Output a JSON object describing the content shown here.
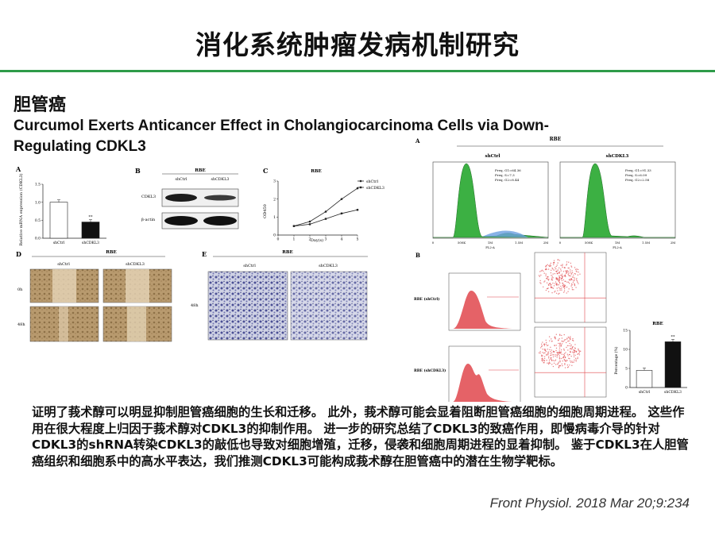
{
  "slide": {
    "title": "消化系统肿瘤发病机制研究",
    "section": "胆管癌",
    "paper_title": "Curcumol Exerts Anticancer Effect in Cholangiocarcinoma Cells via Down-Regulating CDKL3",
    "summary": "证明了莪术醇可以明显抑制胆管癌细胞的生长和迁移。 此外，莪术醇可能会显着阻断胆管癌细胞的细胞周期进程。 这些作用在很大程度上归因于莪术醇对CDKL3的抑制作用。 进一步的研究总结了CDKL3的致癌作用，即慢病毒介导的针对CDKL3的shRNA转染CDKL3的敲低也导致对细胞增殖，迁移，侵袭和细胞周期进程的显着抑制。 鉴于CDKL3在人胆管癌组织和细胞系中的高水平表达，我们推测CDKL3可能构成莪术醇在胆管癌中的潜在生物学靶标。",
    "citation": "Front Physiol. 2018 Mar 20;9:234"
  },
  "colors": {
    "accent": "#2e9b49",
    "histogram_fill": "#3cb043",
    "apoptosis_red": "#e0474c"
  },
  "figure_left": {
    "panel_a": {
      "letter": "A",
      "ylabel": "Relative mRNA expression (CDKL3)",
      "categories": [
        "shCtrl",
        "shCDKL3"
      ],
      "values": [
        1.0,
        0.45
      ],
      "ticks": [
        "0.0",
        "0.5",
        "1.0",
        "1.5"
      ],
      "sig": "**"
    },
    "panel_b": {
      "letter": "B",
      "cell_line": "RBE",
      "lanes": [
        "shCtrl",
        "shCDKL3"
      ],
      "rows": [
        "CDKL3",
        "β-actin"
      ]
    },
    "panel_c": {
      "letter": "C",
      "cell_line": "RBE",
      "xlabel": "Day(s)",
      "ylabel": "OD450",
      "x": [
        0,
        1,
        2,
        3,
        4,
        5
      ],
      "series": [
        {
          "name": "shCtrl",
          "values": [
            0.3,
            0.5,
            0.75,
            1.3,
            2.0,
            2.6
          ]
        },
        {
          "name": "shCDKL3",
          "values": [
            0.3,
            0.5,
            0.6,
            0.9,
            1.2,
            1.4
          ]
        }
      ],
      "xticks": [
        "0",
        "1",
        "2",
        "3",
        "4",
        "5"
      ],
      "yticks": [
        "0",
        "1",
        "2",
        "3"
      ]
    },
    "panel_d": {
      "letter": "D",
      "cell_line": "RBE",
      "columns": [
        "shCtrl",
        "shCDKL3"
      ],
      "rows": [
        "0h",
        "48h"
      ]
    },
    "panel_e": {
      "letter": "E",
      "cell_line": "RBE",
      "columns": [
        "shCtrl",
        "shCDKL3"
      ],
      "row": "48h"
    }
  },
  "figure_right": {
    "panel_a": {
      "letter": "A",
      "cell_line": "RBE",
      "plots": [
        {
          "title": "shCtrl",
          "stats": [
            "Freq. G1=64.36",
            "Freq. S=7.3",
            "Freq. G2=8.44"
          ]
        },
        {
          "title": "shCDKL3",
          "stats": [
            "Freq. G1=91.33",
            "Freq. S=6.09",
            "Freq. G2=2.58"
          ]
        }
      ],
      "xticks": [
        "0",
        "500K",
        "1M",
        "1.5M",
        "2M"
      ],
      "xlabel": "FL2-A"
    },
    "panel_b": {
      "letter": "B",
      "rows": [
        "RBE (shCtrl)",
        "RBE (shCDKL3)"
      ],
      "bar_chart": {
        "title": "RBE",
        "ylabel": "Percentage (%)",
        "categories": [
          "shCtrl",
          "shCDKL3"
        ],
        "values": [
          4.5,
          12
        ],
        "yticks": [
          "0",
          "5",
          "10",
          "15"
        ],
        "sig": "**"
      }
    }
  },
  "chart_data": [
    {
      "type": "bar",
      "title": "",
      "categories": [
        "shCtrl",
        "shCDKL3"
      ],
      "values": [
        1.0,
        0.45
      ],
      "ylabel": "Relative mRNA expression (CDKL3)",
      "ylim": [
        0,
        1.5
      ]
    },
    {
      "type": "line",
      "title": "RBE",
      "x": [
        0,
        1,
        2,
        3,
        4,
        5
      ],
      "series": [
        {
          "name": "shCtrl",
          "values": [
            0.3,
            0.5,
            0.75,
            1.3,
            2.0,
            2.6
          ]
        },
        {
          "name": "shCDKL3",
          "values": [
            0.3,
            0.5,
            0.6,
            0.9,
            1.2,
            1.4
          ]
        }
      ],
      "xlabel": "Day(s)",
      "ylabel": "OD450",
      "ylim": [
        0,
        3
      ]
    },
    {
      "type": "bar",
      "title": "RBE",
      "categories": [
        "shCtrl",
        "shCDKL3"
      ],
      "values": [
        4.5,
        12
      ],
      "ylabel": "Percentage (%)",
      "ylim": [
        0,
        15
      ]
    }
  ]
}
